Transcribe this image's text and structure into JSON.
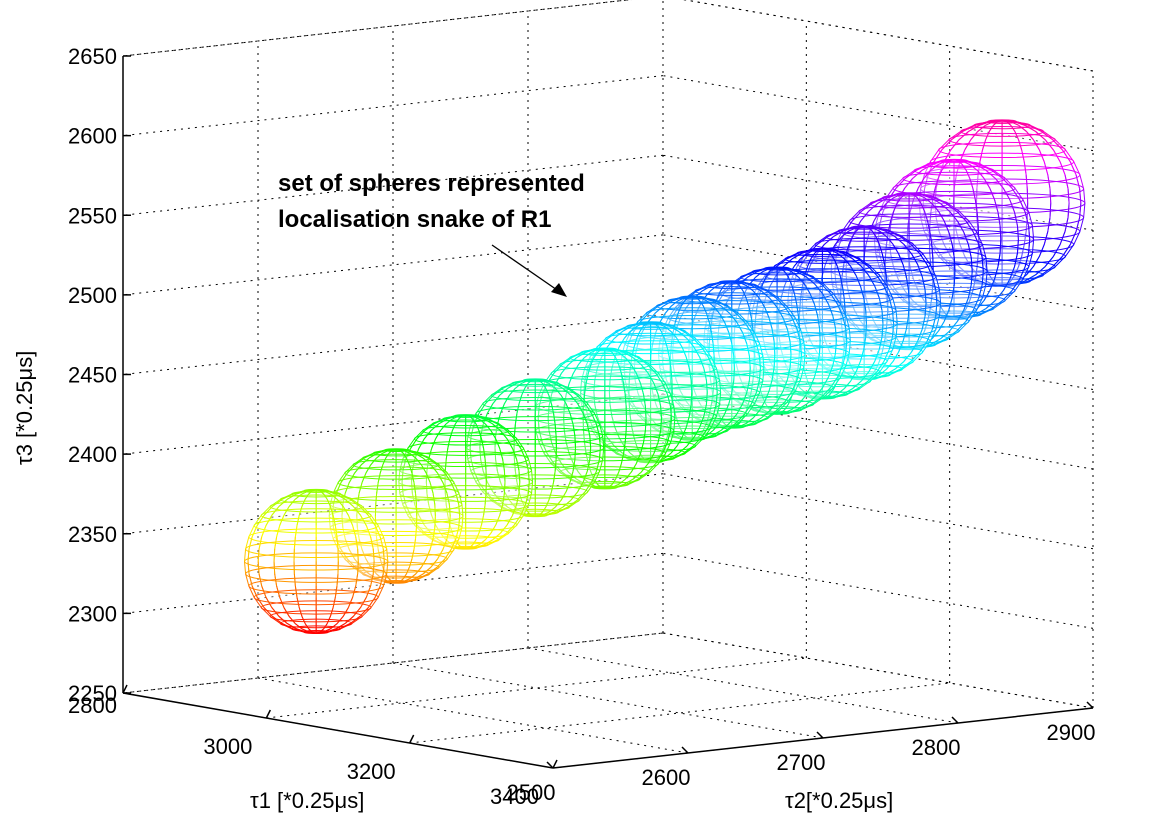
{
  "chart_data": {
    "type": "scatter",
    "subtype": "3d-wireframe-spheres",
    "title": "",
    "xlabel": "τ1 [*0.25μs]",
    "ylabel": "τ2[*0.25μs]",
    "zlabel": "τ3 [*0.25μs]",
    "xlim": [
      2800,
      3400
    ],
    "ylim": [
      2500,
      2900
    ],
    "zlim": [
      2250,
      2650
    ],
    "x_ticks": [
      "2800",
      "3000",
      "3200",
      "3400"
    ],
    "y_ticks": [
      "2500",
      "2600",
      "2700",
      "2800",
      "2900"
    ],
    "z_ticks": [
      "2250",
      "2300",
      "2350",
      "2400",
      "2450",
      "2500",
      "2550",
      "2600",
      "2650"
    ],
    "grid": true,
    "annotation": {
      "lines": [
        "set of spheres represented",
        "localisation snake of R1"
      ]
    },
    "spheres": [
      {
        "x": 2900,
        "y": 2590,
        "z": 2332,
        "r": 45
      },
      {
        "x": 2955,
        "y": 2620,
        "z": 2362,
        "r": 42
      },
      {
        "x": 3005,
        "y": 2645,
        "z": 2385,
        "r": 42
      },
      {
        "x": 3055,
        "y": 2670,
        "z": 2408,
        "r": 43
      },
      {
        "x": 3105,
        "y": 2695,
        "z": 2428,
        "r": 44
      },
      {
        "x": 3150,
        "y": 2705,
        "z": 2447,
        "r": 44
      },
      {
        "x": 3195,
        "y": 2712,
        "z": 2465,
        "r": 45
      },
      {
        "x": 3235,
        "y": 2720,
        "z": 2476,
        "r": 46
      },
      {
        "x": 3270,
        "y": 2735,
        "z": 2486,
        "r": 46
      },
      {
        "x": 3305,
        "y": 2750,
        "z": 2498,
        "r": 47
      },
      {
        "x": 3335,
        "y": 2765,
        "z": 2512,
        "r": 48
      },
      {
        "x": 3360,
        "y": 2785,
        "z": 2532,
        "r": 49
      },
      {
        "x": 3385,
        "y": 2805,
        "z": 2552,
        "r": 50
      },
      {
        "x": 3405,
        "y": 2830,
        "z": 2574,
        "r": 52
      }
    ],
    "colormap": "hsv"
  }
}
